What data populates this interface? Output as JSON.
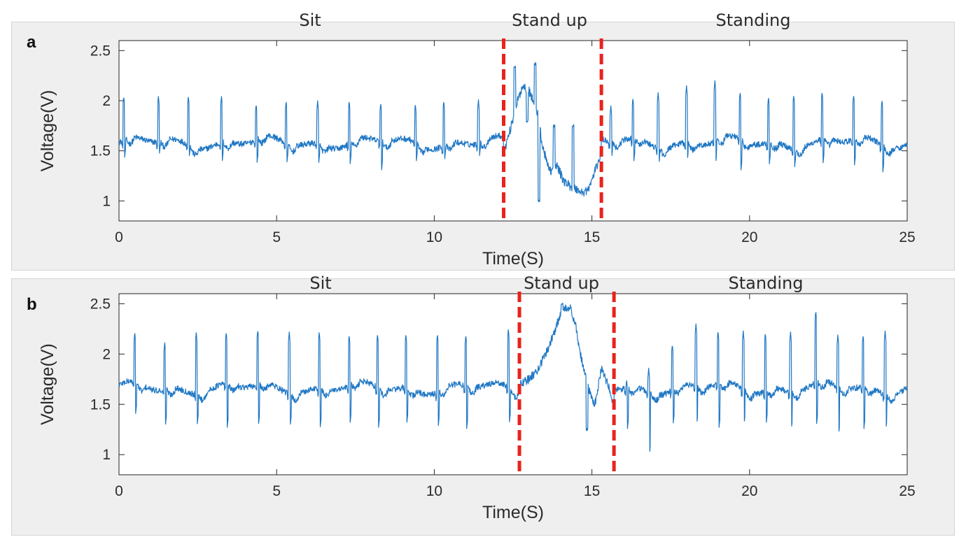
{
  "colors": {
    "signal": "#1f77c4",
    "marker": "#e8231c",
    "axis": "#262626",
    "panel_bg": "#efefef"
  },
  "chart_data": [
    {
      "type": "line",
      "panel": "a",
      "xlabel": "Time(S)",
      "ylabel": "Voltage(V)",
      "xlim": [
        0,
        25
      ],
      "ylim": [
        0.8,
        2.6
      ],
      "xticks": [
        0,
        5,
        10,
        15,
        20,
        25
      ],
      "yticks": [
        1,
        1.5,
        2,
        2.5
      ],
      "ytick_labels": [
        "1",
        "1.5",
        "2",
        "2.5"
      ],
      "grid": false,
      "phases": [
        "Sit",
        "Stand up",
        "Standing"
      ],
      "markers_x": [
        12.2,
        15.3
      ],
      "series": [
        {
          "baseline": 1.58,
          "peaks": [
            0.15,
            1.25,
            2.2,
            3.25,
            4.35,
            5.3,
            6.3,
            7.3,
            8.3,
            9.4,
            10.3,
            11.4,
            15.6,
            16.3,
            17.1,
            18.0,
            18.9,
            19.7,
            20.6,
            21.4,
            22.3,
            23.3,
            24.2
          ],
          "peak_values": [
            2.05,
            2.05,
            2.05,
            2.05,
            1.97,
            2.0,
            2.0,
            2.0,
            1.98,
            1.97,
            2.0,
            2.01,
            1.95,
            2.03,
            2.08,
            2.15,
            2.2,
            2.09,
            2.04,
            2.06,
            2.09,
            2.06,
            2.01
          ],
          "trough_values": [
            1.42,
            1.45,
            1.43,
            1.4,
            1.37,
            1.38,
            1.35,
            1.35,
            1.3,
            1.38,
            1.4,
            1.42,
            1.42,
            1.38,
            1.36,
            1.4,
            1.37,
            1.3,
            1.36,
            1.32,
            1.36,
            1.35,
            1.28
          ],
          "transition": [
            [
              12.2,
              1.48
            ],
            [
              12.4,
              1.7
            ],
            [
              12.6,
              1.95
            ],
            [
              12.8,
              2.15
            ],
            [
              13.0,
              2.1
            ],
            [
              13.2,
              1.95
            ],
            [
              13.3,
              1.85
            ],
            [
              13.4,
              1.6
            ],
            [
              13.55,
              1.4
            ],
            [
              13.7,
              1.3
            ],
            [
              13.9,
              1.35
            ],
            [
              14.1,
              1.2
            ],
            [
              14.3,
              1.15
            ],
            [
              14.5,
              1.12
            ],
            [
              14.7,
              1.08
            ],
            [
              14.9,
              1.12
            ],
            [
              15.1,
              1.3
            ],
            [
              15.3,
              1.48
            ]
          ],
          "transition_spikes": [
            [
              12.55,
              2.34
            ],
            [
              12.95,
              1.8
            ],
            [
              13.2,
              2.37
            ],
            [
              13.32,
              1.0
            ],
            [
              13.8,
              1.75
            ],
            [
              14.4,
              1.75
            ]
          ]
        }
      ]
    },
    {
      "type": "line",
      "panel": "b",
      "xlabel": "Time(S)",
      "ylabel": "Voltage(V)",
      "xlim": [
        0,
        25
      ],
      "ylim": [
        0.8,
        2.6
      ],
      "xticks": [
        0,
        5,
        10,
        15,
        20,
        25
      ],
      "yticks": [
        1,
        1.5,
        2,
        2.5
      ],
      "ytick_labels": [
        "1",
        "1.5",
        "2",
        "2.5"
      ],
      "grid": false,
      "phases": [
        "Sit",
        "Stand up",
        "Standing"
      ],
      "markers_x": [
        12.7,
        15.7
      ],
      "series": [
        {
          "baseline": 1.66,
          "peaks": [
            0.5,
            1.45,
            2.45,
            3.4,
            4.4,
            5.4,
            6.35,
            7.3,
            8.2,
            9.1,
            10.1,
            11.0,
            12.35,
            16.1,
            16.8,
            17.55,
            18.3,
            19.0,
            19.8,
            20.5,
            21.3,
            22.1,
            22.8,
            23.6,
            24.3
          ],
          "peak_values": [
            2.22,
            2.12,
            2.22,
            2.22,
            2.24,
            2.22,
            2.22,
            2.19,
            2.2,
            2.2,
            2.2,
            2.19,
            2.25,
            1.75,
            1.86,
            2.1,
            2.3,
            2.23,
            2.23,
            2.21,
            2.22,
            2.43,
            2.19,
            2.19,
            2.23
          ],
          "trough_values": [
            1.4,
            1.3,
            1.28,
            1.25,
            1.3,
            1.27,
            1.25,
            1.3,
            1.25,
            1.3,
            1.28,
            1.25,
            1.3,
            1.25,
            1.0,
            1.3,
            1.3,
            1.25,
            1.3,
            1.3,
            1.25,
            1.3,
            1.2,
            1.25,
            1.25
          ],
          "transition": [
            [
              12.7,
              1.7
            ],
            [
              13.0,
              1.75
            ],
            [
              13.3,
              1.85
            ],
            [
              13.6,
              2.05
            ],
            [
              13.9,
              2.3
            ],
            [
              14.1,
              2.47
            ],
            [
              14.3,
              2.47
            ],
            [
              14.5,
              2.25
            ],
            [
              14.7,
              1.9
            ],
            [
              14.9,
              1.65
            ],
            [
              15.0,
              1.55
            ],
            [
              15.1,
              1.5
            ],
            [
              15.3,
              1.85
            ],
            [
              15.5,
              1.7
            ],
            [
              15.7,
              1.5
            ]
          ],
          "transition_spikes": [
            [
              14.05,
              2.5
            ],
            [
              14.85,
              1.25
            ]
          ]
        }
      ]
    }
  ]
}
